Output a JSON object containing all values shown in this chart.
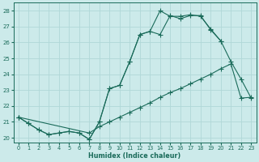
{
  "xlabel": "Humidex (Indice chaleur)",
  "bg_color": "#cceaea",
  "grid_color": "#b0d8d8",
  "line_color": "#1a6b5a",
  "xlim": [
    -0.5,
    23.5
  ],
  "ylim": [
    19.7,
    28.5
  ],
  "yticks": [
    20,
    21,
    22,
    23,
    24,
    25,
    26,
    27,
    28
  ],
  "xticks": [
    0,
    1,
    2,
    3,
    4,
    5,
    6,
    7,
    8,
    9,
    10,
    11,
    12,
    13,
    14,
    15,
    16,
    17,
    18,
    19,
    20,
    21,
    22,
    23
  ],
  "curve1_x": [
    0,
    1,
    2,
    3,
    4,
    5,
    6,
    7,
    8,
    9,
    10,
    11,
    12,
    13,
    14,
    15,
    16,
    17,
    18,
    19,
    20
  ],
  "curve1_y": [
    21.3,
    20.9,
    20.5,
    20.2,
    20.3,
    20.4,
    20.3,
    19.9,
    21.0,
    23.1,
    23.3,
    24.8,
    26.5,
    26.7,
    28.0,
    27.65,
    27.65,
    27.75,
    27.65,
    26.85,
    26.1
  ],
  "curve2_x": [
    0,
    1,
    2,
    3,
    4,
    5,
    6,
    7,
    8,
    9,
    10,
    11,
    12,
    13,
    14,
    15,
    16,
    17,
    18,
    19,
    20,
    21,
    22,
    23
  ],
  "curve2_y": [
    21.3,
    20.9,
    20.5,
    20.2,
    20.3,
    20.4,
    20.3,
    19.9,
    21.0,
    23.1,
    23.3,
    24.8,
    26.5,
    26.7,
    26.5,
    27.7,
    27.5,
    27.7,
    27.7,
    26.8,
    26.1,
    24.8,
    23.7,
    22.5
  ],
  "curve3_x": [
    0,
    7,
    8,
    9,
    10,
    11,
    12,
    13,
    14,
    15,
    16,
    17,
    18,
    19,
    20,
    21,
    22,
    23
  ],
  "curve3_y": [
    21.3,
    20.3,
    20.7,
    21.0,
    21.3,
    21.6,
    21.9,
    22.2,
    22.55,
    22.85,
    23.1,
    23.4,
    23.7,
    24.0,
    24.35,
    24.65,
    22.5,
    22.55
  ]
}
